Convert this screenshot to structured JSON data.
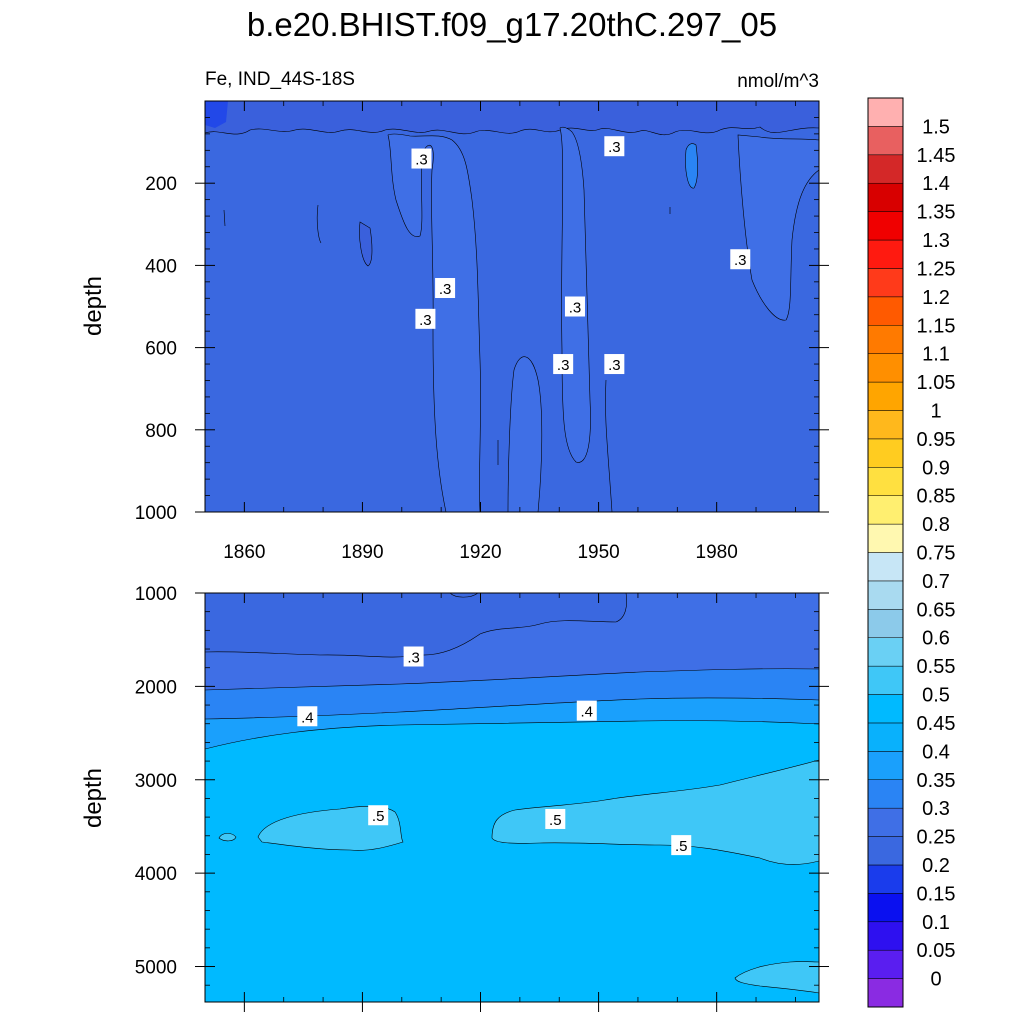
{
  "chart_data": {
    "type": "heatmap",
    "title": "b.e20.BHIST.f09_g17.20thC.297_05",
    "subtitle_left": "Fe, IND_44S-18S",
    "units": "nmol/m^3",
    "ylabel": "depth",
    "xlim": [
      1850,
      2006
    ],
    "x_ticks": [
      1860,
      1890,
      1920,
      1950,
      1980
    ],
    "panels": [
      {
        "name": "upper",
        "ylim": [
          0,
          1000
        ],
        "y_ticks": [
          200,
          400,
          600,
          800,
          1000
        ],
        "contour_labels": [
          {
            "text": ".3",
            "x": 1905,
            "y": 140
          },
          {
            "text": ".3",
            "x": 1954,
            "y": 110
          },
          {
            "text": ".3",
            "x": 1911,
            "y": 455
          },
          {
            "text": ".3",
            "x": 1906,
            "y": 530
          },
          {
            "text": ".3",
            "x": 1944,
            "y": 500
          },
          {
            "text": ".3",
            "x": 1986,
            "y": 385
          },
          {
            "text": ".3",
            "x": 1941,
            "y": 640
          },
          {
            "text": ".3",
            "x": 1954,
            "y": 640
          }
        ]
      },
      {
        "name": "lower",
        "ylim": [
          1000,
          5380
        ],
        "y_ticks": [
          1000,
          2000,
          3000,
          4000,
          5000
        ],
        "contour_labels": [
          {
            "text": ".3",
            "x": 1903,
            "y": 1680
          },
          {
            "text": ".4",
            "x": 1876,
            "y": 2320
          },
          {
            "text": ".4",
            "x": 1947,
            "y": 2260
          },
          {
            "text": ".5",
            "x": 1894,
            "y": 3380
          },
          {
            "text": ".5",
            "x": 1939,
            "y": 3420
          },
          {
            "text": ".5",
            "x": 1971,
            "y": 3700
          }
        ]
      }
    ],
    "colorbar": {
      "labels": [
        "0",
        "0.05",
        "0.1",
        "0.15",
        "0.2",
        "0.25",
        "0.3",
        "0.35",
        "0.4",
        "0.45",
        "0.5",
        "0.55",
        "0.6",
        "0.65",
        "0.7",
        "0.75",
        "0.8",
        "0.85",
        "0.9",
        "0.95",
        "1",
        "1.05",
        "1.1",
        "1.15",
        "1.2",
        "1.25",
        "1.3",
        "1.35",
        "1.4",
        "1.45",
        "1.5"
      ],
      "colors": [
        "#8a2be2",
        "#5a1ef0",
        "#2e10f0",
        "#0a10f0",
        "#1a3cec",
        "#3a68e0",
        "#3f6fe6",
        "#2a84f4",
        "#1aa0fc",
        "#09b1fc",
        "#00baff",
        "#3fc7f7",
        "#6ad0f4",
        "#8ccaea",
        "#a9daf0",
        "#c7e6f6",
        "#fff8b0",
        "#ffef70",
        "#ffe040",
        "#ffcc20",
        "#ffb81c",
        "#ffa500",
        "#ff8f00",
        "#ff7a00",
        "#ff5a00",
        "#ff3a1a",
        "#ff1a10",
        "#f00000",
        "#d80000",
        "#d42828",
        "#e86060",
        "#ffb0b0"
      ]
    }
  }
}
